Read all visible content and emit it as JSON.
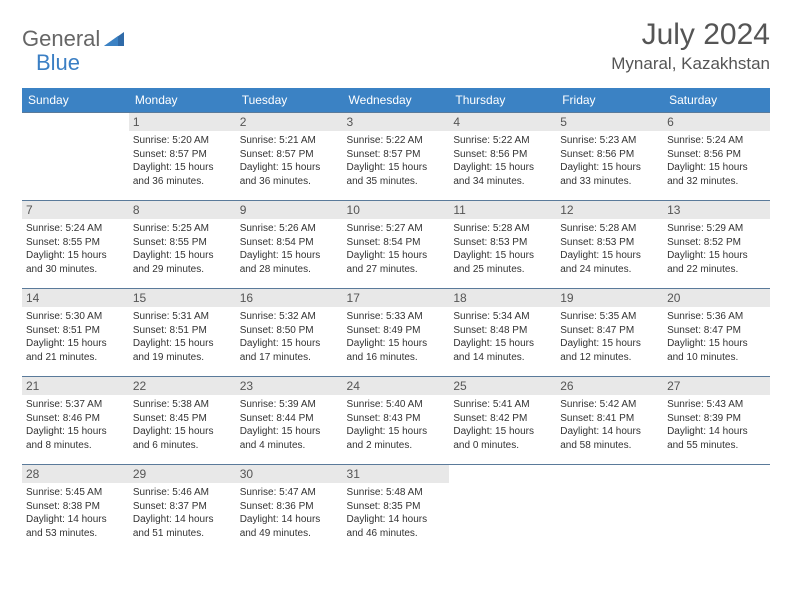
{
  "logo": {
    "word1": "General",
    "word2": "Blue"
  },
  "title": {
    "month": "July 2024",
    "location": "Mynaral, Kazakhstan"
  },
  "colors": {
    "header_bg": "#3b82c4",
    "header_text": "#ffffff",
    "border": "#5a7a9a",
    "daynum_bg": "#e8e8e8",
    "text": "#333333",
    "logo_gray": "#666666",
    "logo_blue": "#3b7fc4"
  },
  "weekdays": [
    "Sunday",
    "Monday",
    "Tuesday",
    "Wednesday",
    "Thursday",
    "Friday",
    "Saturday"
  ],
  "weeks": [
    [
      null,
      {
        "n": "1",
        "sr": "5:20 AM",
        "ss": "8:57 PM",
        "dl": "15 hours and 36 minutes."
      },
      {
        "n": "2",
        "sr": "5:21 AM",
        "ss": "8:57 PM",
        "dl": "15 hours and 36 minutes."
      },
      {
        "n": "3",
        "sr": "5:22 AM",
        "ss": "8:57 PM",
        "dl": "15 hours and 35 minutes."
      },
      {
        "n": "4",
        "sr": "5:22 AM",
        "ss": "8:56 PM",
        "dl": "15 hours and 34 minutes."
      },
      {
        "n": "5",
        "sr": "5:23 AM",
        "ss": "8:56 PM",
        "dl": "15 hours and 33 minutes."
      },
      {
        "n": "6",
        "sr": "5:24 AM",
        "ss": "8:56 PM",
        "dl": "15 hours and 32 minutes."
      }
    ],
    [
      {
        "n": "7",
        "sr": "5:24 AM",
        "ss": "8:55 PM",
        "dl": "15 hours and 30 minutes."
      },
      {
        "n": "8",
        "sr": "5:25 AM",
        "ss": "8:55 PM",
        "dl": "15 hours and 29 minutes."
      },
      {
        "n": "9",
        "sr": "5:26 AM",
        "ss": "8:54 PM",
        "dl": "15 hours and 28 minutes."
      },
      {
        "n": "10",
        "sr": "5:27 AM",
        "ss": "8:54 PM",
        "dl": "15 hours and 27 minutes."
      },
      {
        "n": "11",
        "sr": "5:28 AM",
        "ss": "8:53 PM",
        "dl": "15 hours and 25 minutes."
      },
      {
        "n": "12",
        "sr": "5:28 AM",
        "ss": "8:53 PM",
        "dl": "15 hours and 24 minutes."
      },
      {
        "n": "13",
        "sr": "5:29 AM",
        "ss": "8:52 PM",
        "dl": "15 hours and 22 minutes."
      }
    ],
    [
      {
        "n": "14",
        "sr": "5:30 AM",
        "ss": "8:51 PM",
        "dl": "15 hours and 21 minutes."
      },
      {
        "n": "15",
        "sr": "5:31 AM",
        "ss": "8:51 PM",
        "dl": "15 hours and 19 minutes."
      },
      {
        "n": "16",
        "sr": "5:32 AM",
        "ss": "8:50 PM",
        "dl": "15 hours and 17 minutes."
      },
      {
        "n": "17",
        "sr": "5:33 AM",
        "ss": "8:49 PM",
        "dl": "15 hours and 16 minutes."
      },
      {
        "n": "18",
        "sr": "5:34 AM",
        "ss": "8:48 PM",
        "dl": "15 hours and 14 minutes."
      },
      {
        "n": "19",
        "sr": "5:35 AM",
        "ss": "8:47 PM",
        "dl": "15 hours and 12 minutes."
      },
      {
        "n": "20",
        "sr": "5:36 AM",
        "ss": "8:47 PM",
        "dl": "15 hours and 10 minutes."
      }
    ],
    [
      {
        "n": "21",
        "sr": "5:37 AM",
        "ss": "8:46 PM",
        "dl": "15 hours and 8 minutes."
      },
      {
        "n": "22",
        "sr": "5:38 AM",
        "ss": "8:45 PM",
        "dl": "15 hours and 6 minutes."
      },
      {
        "n": "23",
        "sr": "5:39 AM",
        "ss": "8:44 PM",
        "dl": "15 hours and 4 minutes."
      },
      {
        "n": "24",
        "sr": "5:40 AM",
        "ss": "8:43 PM",
        "dl": "15 hours and 2 minutes."
      },
      {
        "n": "25",
        "sr": "5:41 AM",
        "ss": "8:42 PM",
        "dl": "15 hours and 0 minutes."
      },
      {
        "n": "26",
        "sr": "5:42 AM",
        "ss": "8:41 PM",
        "dl": "14 hours and 58 minutes."
      },
      {
        "n": "27",
        "sr": "5:43 AM",
        "ss": "8:39 PM",
        "dl": "14 hours and 55 minutes."
      }
    ],
    [
      {
        "n": "28",
        "sr": "5:45 AM",
        "ss": "8:38 PM",
        "dl": "14 hours and 53 minutes."
      },
      {
        "n": "29",
        "sr": "5:46 AM",
        "ss": "8:37 PM",
        "dl": "14 hours and 51 minutes."
      },
      {
        "n": "30",
        "sr": "5:47 AM",
        "ss": "8:36 PM",
        "dl": "14 hours and 49 minutes."
      },
      {
        "n": "31",
        "sr": "5:48 AM",
        "ss": "8:35 PM",
        "dl": "14 hours and 46 minutes."
      },
      null,
      null,
      null
    ]
  ],
  "labels": {
    "sunrise": "Sunrise:",
    "sunset": "Sunset:",
    "daylight": "Daylight:"
  }
}
